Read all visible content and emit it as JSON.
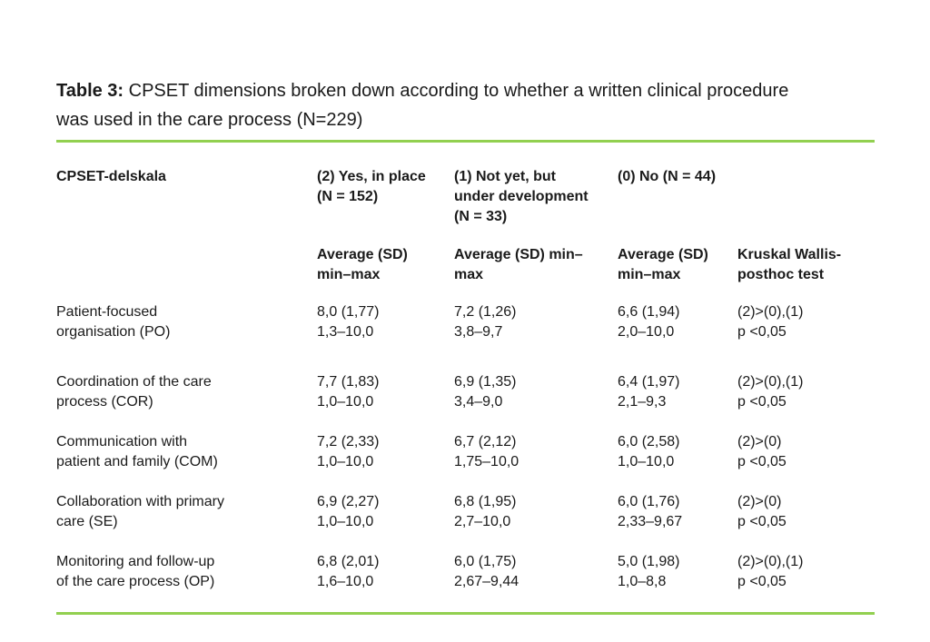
{
  "accent_color": "#92d050",
  "caption": {
    "label": "Table 3:",
    "text": " CPSET dimensions broken down according to whether a written clinical procedure\nwas used in the care process (N=229)"
  },
  "table": {
    "group_headers": [
      "CPSET-delskala",
      "(2) Yes, in place\n(N = 152)",
      "(1) Not yet, but\nunder development\n(N = 33)",
      "(0) No (N = 44)",
      ""
    ],
    "stat_headers": [
      "",
      "Average (SD)\nmin–max",
      "Average (SD) min–\nmax",
      "Average (SD)\nmin–max",
      "Kruskal Wallis-\nposthoc test"
    ],
    "rows": [
      {
        "cells": [
          "Patient-focused\norganisation (PO)",
          "8,0 (1,77)\n1,3–10,0",
          "7,2 (1,26)\n3,8–9,7",
          "6,6 (1,94)\n2,0–10,0",
          "(2)>(0),(1)\np <0,05"
        ]
      },
      {
        "cells": [
          "Coordination of the care\nprocess (COR)",
          "7,7 (1,83)\n1,0–10,0",
          "6,9 (1,35)\n3,4–9,0",
          "6,4 (1,97)\n2,1–9,3",
          "(2)>(0),(1)\np <0,05"
        ]
      },
      {
        "cells": [
          "Communication with\npatient and family (COM)",
          "7,2 (2,33)\n1,0–10,0",
          "6,7 (2,12)\n1,75–10,0",
          "6,0 (2,58)\n1,0–10,0",
          "(2)>(0)\np <0,05"
        ]
      },
      {
        "cells": [
          "Collaboration with primary\ncare (SE)",
          "6,9 (2,27)\n1,0–10,0",
          "6,8 (1,95)\n2,7–10,0",
          "6,0 (1,76)\n2,33–9,67",
          "(2)>(0)\np <0,05"
        ]
      },
      {
        "cells": [
          "Monitoring and follow-up\nof the care process (OP)",
          "6,8 (2,01)\n1,6–10,0",
          "6,0 (1,75)\n2,67–9,44",
          "5,0 (1,98)\n1,0–8,8",
          "(2)>(0),(1)\np <0,05"
        ]
      }
    ]
  }
}
